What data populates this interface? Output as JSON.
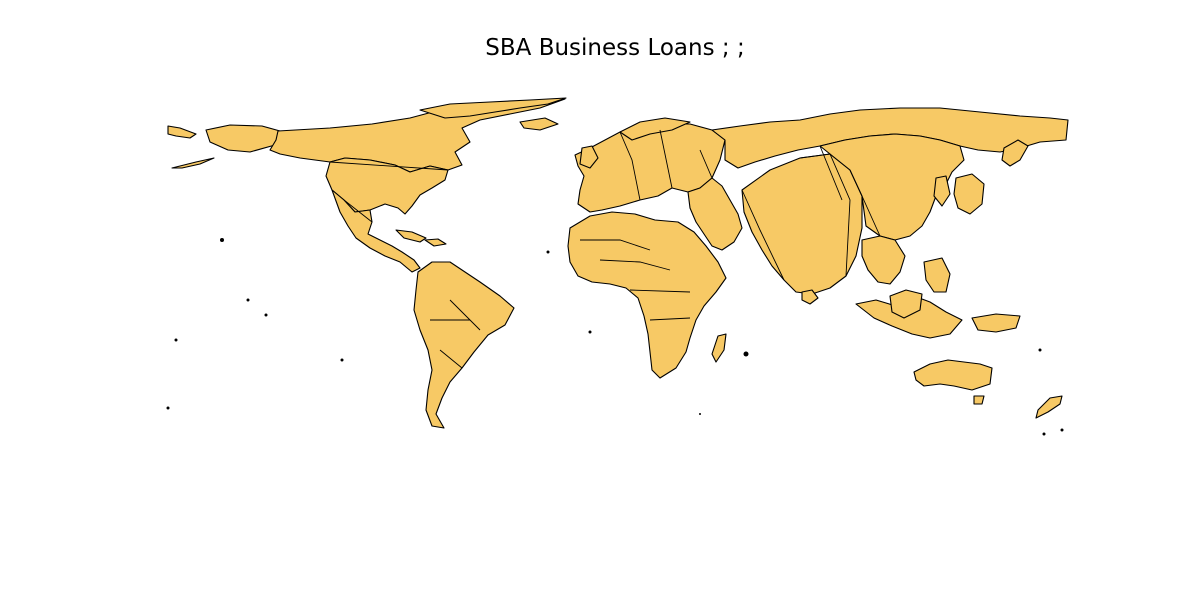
{
  "title": "SBA Business Loans ; ;",
  "map": {
    "projection": "cartogram-world",
    "land_color": "#F7C965",
    "border_color": "#000000",
    "background": "#FFFFFF"
  }
}
